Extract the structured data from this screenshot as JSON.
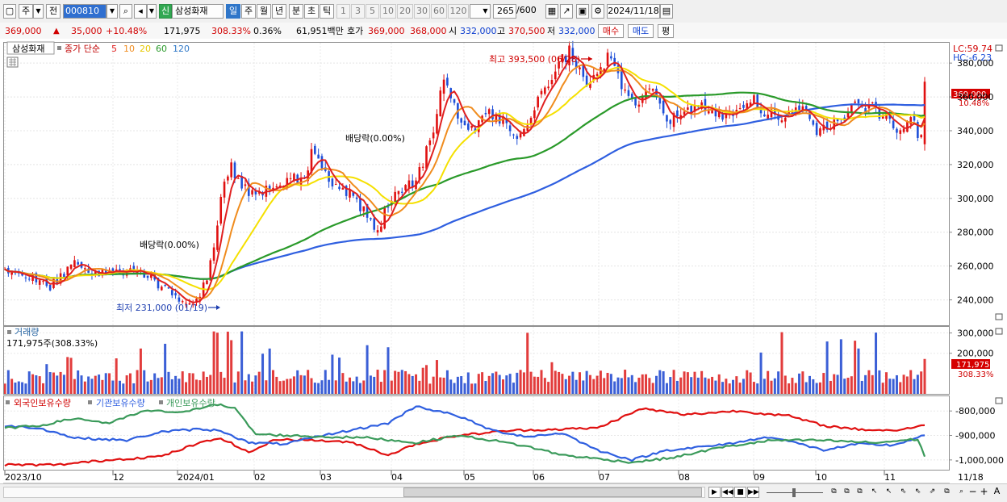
{
  "toolbar": {
    "market_btn": "주",
    "prev_btn": "전",
    "code": "000810",
    "signal_btn": "신",
    "stock_name": "삼성화재",
    "periods": [
      "일",
      "주",
      "월",
      "년",
      "분",
      "초",
      "틱"
    ],
    "intervals": [
      "1",
      "3",
      "5",
      "10",
      "20",
      "30",
      "60",
      "120"
    ],
    "count": "265",
    "count_total": "/600",
    "date": "2024/11/18"
  },
  "quote": {
    "price": "369,000",
    "change": "35,000",
    "change_pct": "+10.48%",
    "volume": "171,975",
    "volume_ratio": "308.33%",
    "turnover_pct": "0.36%",
    "amount": "61,951백만",
    "bid_label": "호가",
    "ask": "369,000",
    "bid": "368,000",
    "open_label": "시",
    "open": "332,000",
    "high_label": "고",
    "high": "370,500",
    "low_label": "저",
    "low": "332,000",
    "buy_btn": "매수",
    "sell_btn": "매도",
    "eval_btn": "평"
  },
  "legend": {
    "name_box": "삼성화재",
    "ma_label": "종가 단순",
    "periods": [
      "5",
      "10",
      "20",
      "60",
      "120"
    ],
    "lc": "LC:59.74",
    "hc": "HC:-6.23"
  },
  "annotations": {
    "max": "최고 393,500 (06/28)",
    "min": "최저 231,000 (01/19)",
    "div1": "배당락(0.00%)",
    "div2": "배당락(0.00%)"
  },
  "price_badge": {
    "value": "369,000",
    "pct": "10.48%"
  },
  "volume_panel": {
    "title": "거래량",
    "info": "171,975주(308.33%)",
    "badge_value": "171,975",
    "badge_pct": "308.33%"
  },
  "holdings_panel": {
    "legend": [
      "외국인보유수량",
      "기관보유수량",
      "개인보유수량"
    ]
  },
  "colors": {
    "up": "#e01010",
    "down": "#1e4fd8",
    "ma5": "#e02020",
    "ma10": "#f08c1e",
    "ma20": "#f5e000",
    "ma60": "#2a9a2a",
    "ma120": "#2f5fe0",
    "foreign": "#e01010",
    "inst": "#2f5fe0",
    "indiv": "#3a9a5a"
  },
  "chart_data": [
    {
      "type": "candlestick",
      "title": "삼성화재",
      "y_ticks": [
        "380,000",
        "360,000",
        "340,000",
        "320,000",
        "300,000",
        "280,000",
        "260,000",
        "240,000"
      ],
      "ylim": [
        225000,
        392000
      ],
      "x_ticks": [
        "2023/10",
        "12",
        "2024/01",
        "02",
        "03",
        "04",
        "05",
        "06",
        "07",
        "08",
        "09",
        "10",
        "11",
        "11/18"
      ],
      "series_names": [
        "종가 단순 5",
        "10",
        "20",
        "60",
        "120"
      ],
      "close_points": [
        [
          0,
          258000
        ],
        [
          4,
          255000
        ],
        [
          8,
          252000
        ],
        [
          13,
          248000
        ],
        [
          16,
          253000
        ],
        [
          20,
          263000
        ],
        [
          25,
          257000
        ],
        [
          32,
          256000
        ],
        [
          38,
          258000
        ],
        [
          42,
          252000
        ],
        [
          48,
          244000
        ],
        [
          52,
          236000
        ],
        [
          55,
          240000
        ],
        [
          58,
          252000
        ],
        [
          60,
          272000
        ],
        [
          62,
          302000
        ],
        [
          65,
          318000
        ],
        [
          68,
          308000
        ],
        [
          72,
          300000
        ],
        [
          76,
          308000
        ],
        [
          82,
          312000
        ],
        [
          86,
          310000
        ],
        [
          88,
          330000
        ],
        [
          90,
          322000
        ],
        [
          93,
          312000
        ],
        [
          96,
          307000
        ],
        [
          100,
          300000
        ],
        [
          104,
          290000
        ],
        [
          107,
          280000
        ],
        [
          110,
          298000
        ],
        [
          114,
          305000
        ],
        [
          118,
          310000
        ],
        [
          121,
          328000
        ],
        [
          124,
          348000
        ],
        [
          126,
          372000
        ],
        [
          128,
          360000
        ],
        [
          130,
          346000
        ],
        [
          134,
          340000
        ],
        [
          138,
          350000
        ],
        [
          142,
          348000
        ],
        [
          145,
          340000
        ],
        [
          147,
          334000
        ],
        [
          150,
          342000
        ],
        [
          154,
          362000
        ],
        [
          158,
          376000
        ],
        [
          162,
          387000
        ],
        [
          164,
          378000
        ],
        [
          167,
          366000
        ],
        [
          170,
          372000
        ],
        [
          173,
          382000
        ],
        [
          176,
          372000
        ],
        [
          179,
          360000
        ],
        [
          182,
          355000
        ],
        [
          185,
          362000
        ],
        [
          188,
          360000
        ],
        [
          190,
          344000
        ],
        [
          193,
          348000
        ],
        [
          196,
          352000
        ],
        [
          199,
          356000
        ],
        [
          202,
          352000
        ],
        [
          206,
          348000
        ],
        [
          210,
          352000
        ],
        [
          214,
          360000
        ],
        [
          218,
          352000
        ],
        [
          222,
          348000
        ],
        [
          226,
          354000
        ],
        [
          230,
          350000
        ],
        [
          233,
          338000
        ],
        [
          236,
          344000
        ],
        [
          240,
          348000
        ],
        [
          244,
          354000
        ],
        [
          248,
          355000
        ],
        [
          252,
          348000
        ],
        [
          256,
          342000
        ],
        [
          260,
          346000
        ],
        [
          263,
          336000
        ],
        [
          264,
          369000
        ]
      ]
    },
    {
      "type": "bar",
      "title": "거래량",
      "y_ticks": [
        "300,000",
        "200,000"
      ],
      "ylim": [
        0,
        330000
      ]
    },
    {
      "type": "line",
      "title": "보유수량",
      "series": [
        {
          "name": "외국인보유수량"
        },
        {
          "name": "기관보유수량"
        },
        {
          "name": "개인보유수량"
        }
      ],
      "y_ticks": [
        "-800,000",
        "-900,000",
        "-1,000,000"
      ],
      "ylim": [
        -1040000,
        -740000
      ]
    }
  ]
}
